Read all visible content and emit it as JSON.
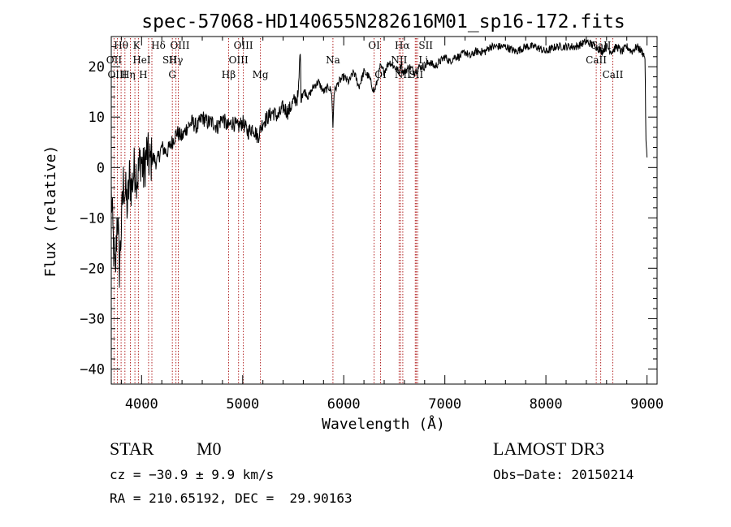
{
  "chart_data": {
    "type": "line",
    "title": "spec-57068-HD140655N282616M01_sp16-172.fits",
    "xlabel": "Wavelength (Å)",
    "ylabel": "Flux (relative)",
    "xlim": [
      3700,
      9100
    ],
    "ylim": [
      -43,
      26
    ],
    "xticks": [
      4000,
      5000,
      6000,
      7000,
      8000,
      9000
    ],
    "yticks": [
      -40,
      -30,
      -20,
      -10,
      0,
      10,
      20
    ],
    "series": [
      {
        "name": "spectrum",
        "x": [
          3700,
          3720,
          3740,
          3760,
          3780,
          3800,
          3820,
          3840,
          3860,
          3880,
          3900,
          3930,
          3960,
          3990,
          4020,
          4050,
          4080,
          4110,
          4150,
          4200,
          4250,
          4300,
          4350,
          4400,
          4450,
          4500,
          4550,
          4600,
          4650,
          4700,
          4750,
          4800,
          4850,
          4900,
          4950,
          5000,
          5050,
          5100,
          5150,
          5200,
          5250,
          5300,
          5350,
          5400,
          5450,
          5500,
          5550,
          5570,
          5577,
          5585,
          5620,
          5650,
          5700,
          5750,
          5800,
          5850,
          5880,
          5893,
          5905,
          5950,
          6000,
          6050,
          6100,
          6150,
          6200,
          6250,
          6300,
          6330,
          6360,
          6400,
          6450,
          6500,
          6550,
          6570,
          6580,
          6600,
          6650,
          6700,
          6750,
          6800,
          6850,
          6900,
          6950,
          7000,
          7050,
          7100,
          7150,
          7200,
          7250,
          7300,
          7350,
          7400,
          7450,
          7500,
          7600,
          7700,
          7800,
          7900,
          8000,
          8100,
          8200,
          8300,
          8400,
          8500,
          8550,
          8600,
          8650,
          8700,
          8750,
          8800,
          8850,
          8900,
          8950,
          8980,
          8990,
          9000
        ],
        "y": [
          -5,
          -15,
          -22,
          -8,
          -20,
          -12,
          -3,
          -5,
          -8,
          -2,
          -4,
          0,
          -2,
          2,
          -1,
          3,
          1,
          2,
          1,
          4,
          3,
          5,
          7,
          6,
          8,
          9,
          8,
          10,
          9,
          9,
          8,
          10,
          8,
          9,
          8,
          9,
          7,
          8,
          6,
          9,
          10,
          11,
          10,
          12,
          11,
          13,
          14,
          24,
          14,
          15,
          15,
          14,
          16,
          17,
          15,
          16,
          15,
          8,
          15,
          17,
          18,
          17,
          19,
          16,
          19,
          18,
          15,
          17,
          20,
          19,
          21,
          20,
          19,
          21,
          19,
          19,
          20,
          19,
          20,
          20,
          21,
          20,
          21,
          22,
          21,
          22,
          22,
          23,
          22,
          23,
          23,
          23,
          24,
          24,
          24,
          23,
          24,
          24,
          23,
          24,
          24,
          24,
          25,
          24,
          23,
          24,
          23,
          24,
          23,
          24,
          23,
          24,
          23,
          22,
          5,
          2
        ]
      }
    ],
    "lines": [
      {
        "name": "Hθ",
        "x": 3797
      },
      {
        "name": "OII",
        "x": 3727
      },
      {
        "name": "OIII",
        "x": 3760
      },
      {
        "name": "K",
        "x": 3934
      },
      {
        "name": "H",
        "x": 3968
      },
      {
        "name": "HeI",
        "x": 3889
      },
      {
        "name": "SII",
        "x": 4069
      },
      {
        "name": "Hδ",
        "x": 4102
      },
      {
        "name": "Hη",
        "x": 3835
      },
      {
        "name": "OIII",
        "x": 4363
      },
      {
        "name": "Hγ",
        "x": 4340
      },
      {
        "name": "G",
        "x": 4304
      },
      {
        "name": "Hβ",
        "x": 4861
      },
      {
        "name": "OIII",
        "x": 4959
      },
      {
        "name": "OIII",
        "x": 5007
      },
      {
        "name": "Mg",
        "x": 5175
      },
      {
        "name": "Na",
        "x": 5893
      },
      {
        "name": "OI",
        "x": 6300
      },
      {
        "name": "OI",
        "x": 6364
      },
      {
        "name": "Hα",
        "x": 6563
      },
      {
        "name": "NII",
        "x": 6548
      },
      {
        "name": "NII",
        "x": 6584
      },
      {
        "name": "SII",
        "x": 6717
      },
      {
        "name": "SII",
        "x": 6731
      },
      {
        "name": "Li",
        "x": 6708
      },
      {
        "name": "CaII",
        "x": 8498
      },
      {
        "name": "CaII",
        "x": 8542
      },
      {
        "name": "CaII",
        "x": 8662
      }
    ],
    "line_labels_display": {
      "row1": [
        "Hθ",
        "K",
        "Hδ",
        "OIII",
        "OIII",
        "OI",
        "Hα",
        "SII",
        "CaII"
      ],
      "row2": [
        "OII",
        "HeI",
        "SII",
        "Hγ",
        "OIII",
        "Na",
        "NII",
        "Li",
        "CaII"
      ],
      "row3": [
        "OIII",
        "Hη",
        "H",
        "G",
        "Hβ",
        "Mg",
        "OI",
        "NII",
        "SII",
        "CaII"
      ]
    }
  },
  "info": {
    "object_class": "STAR",
    "subclass": "M0",
    "survey": "LAMOST DR3",
    "cz": "cz = −30.9 ± 9.9 km/s",
    "obs_date": "Obs−Date: 20150214",
    "coords": "RA = 210.65192, DEC =  29.90163"
  },
  "colors": {
    "spectrum": "#000000",
    "line_markers": "#b22222",
    "axes": "#000000",
    "background": "#ffffff"
  }
}
